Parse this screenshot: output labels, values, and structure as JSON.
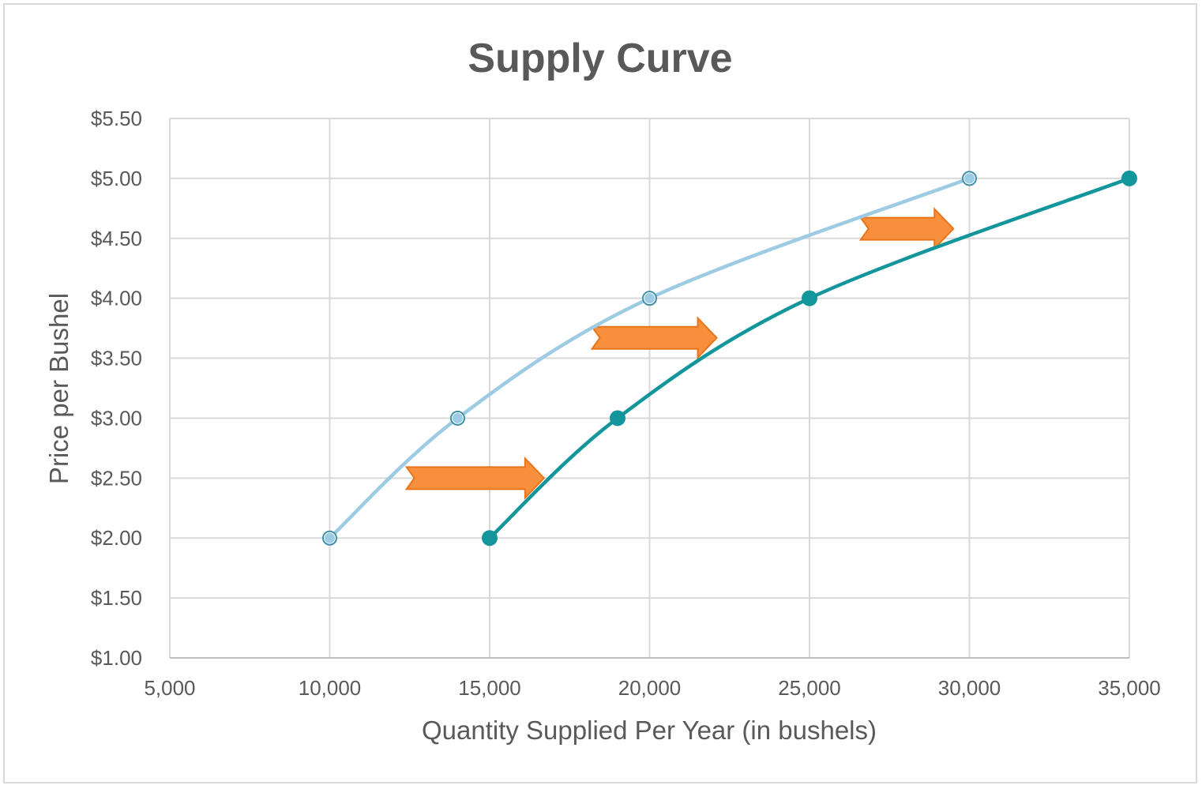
{
  "chart_data": {
    "type": "scatter",
    "title": "Supply Curve",
    "xlabel": "Quantity Supplied Per Year (in bushels)",
    "ylabel": "Price per Bushel",
    "xlim": [
      5000,
      35000
    ],
    "ylim": [
      1.0,
      5.5
    ],
    "x_ticks": [
      5000,
      10000,
      15000,
      20000,
      25000,
      30000,
      35000
    ],
    "x_tick_labels": [
      "5,000",
      "10,000",
      "15,000",
      "20,000",
      "25,000",
      "30,000",
      "35,000"
    ],
    "y_ticks": [
      1.0,
      1.5,
      2.0,
      2.5,
      3.0,
      3.5,
      4.0,
      4.5,
      5.0,
      5.5
    ],
    "y_tick_labels": [
      "$1.00",
      "$1.50",
      "$2.00",
      "$2.50",
      "$3.00",
      "$3.50",
      "$4.00",
      "$4.50",
      "$5.00",
      "$5.50"
    ],
    "grid": true,
    "smooth_lines": true,
    "series": [
      {
        "color": "#9dcbe3",
        "marker": "hollow-circle",
        "points": [
          [
            10000,
            2.0
          ],
          [
            14000,
            3.0
          ],
          [
            20000,
            4.0
          ],
          [
            30000,
            5.0
          ]
        ]
      },
      {
        "color": "#13969b",
        "marker": "filled-circle",
        "points": [
          [
            15000,
            2.0
          ],
          [
            19000,
            3.0
          ],
          [
            25000,
            4.0
          ],
          [
            35000,
            5.0
          ]
        ]
      }
    ],
    "annotations": [
      {
        "type": "arrow-right",
        "color": "#f7903c",
        "from": [
          12400,
          2.5
        ],
        "to": [
          16700,
          2.5
        ]
      },
      {
        "type": "arrow-right",
        "color": "#f7903c",
        "from": [
          18200,
          3.67
        ],
        "to": [
          22100,
          3.67
        ]
      },
      {
        "type": "arrow-right",
        "color": "#f7903c",
        "from": [
          26600,
          4.58
        ],
        "to": [
          29500,
          4.58
        ]
      }
    ]
  }
}
